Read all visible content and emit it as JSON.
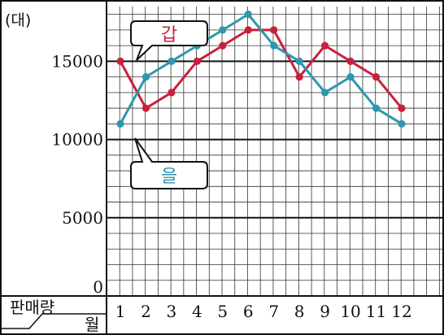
{
  "chart_data": {
    "type": "line",
    "unit_label": "(대)",
    "corner_top_label": "판매량",
    "corner_bottom_label": "월",
    "categories": [
      "1",
      "2",
      "3",
      "4",
      "5",
      "6",
      "7",
      "8",
      "9",
      "10",
      "11",
      "12"
    ],
    "y_ticks": [
      "0",
      "5000",
      "10000",
      "15000"
    ],
    "ylim": [
      0,
      18500
    ],
    "grid": true,
    "series": [
      {
        "name": "갑",
        "color": "#c8203c",
        "values": [
          15000,
          12000,
          13000,
          15000,
          16000,
          17000,
          17000,
          14000,
          16000,
          15000,
          14000,
          12000
        ]
      },
      {
        "name": "을",
        "color": "#2e97ae",
        "values": [
          11000,
          14000,
          15000,
          16000,
          17000,
          18000,
          16000,
          15000,
          13000,
          14000,
          12000,
          11000
        ]
      }
    ]
  }
}
